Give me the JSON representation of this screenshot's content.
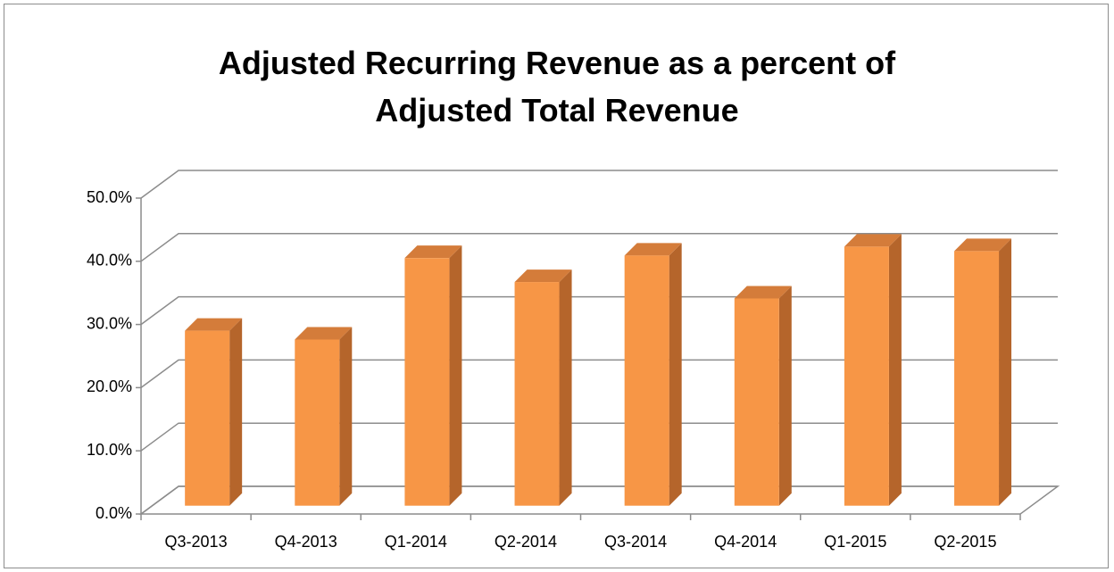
{
  "chart_data": {
    "type": "bar3d",
    "title": "Adjusted Recurring Revenue as a percent of Adjusted Total Revenue",
    "categories": [
      "Q3-2013",
      "Q4-2013",
      "Q1-2014",
      "Q2-2014",
      "Q3-2014",
      "Q4-2014",
      "Q1-2015",
      "Q2-2015"
    ],
    "values": [
      27.7,
      26.3,
      39.2,
      35.4,
      39.6,
      32.8,
      41.0,
      40.3
    ],
    "color": "#f79646",
    "ylim": [
      0,
      50
    ],
    "yticks": [
      {
        "value": 0,
        "label": "0.0%"
      },
      {
        "value": 10,
        "label": "10.0%"
      },
      {
        "value": 20,
        "label": "20.0%"
      },
      {
        "value": 30,
        "label": "30.0%"
      },
      {
        "value": 40,
        "label": "40.0%"
      },
      {
        "value": 50,
        "label": "50.0%"
      }
    ],
    "grid": true
  }
}
